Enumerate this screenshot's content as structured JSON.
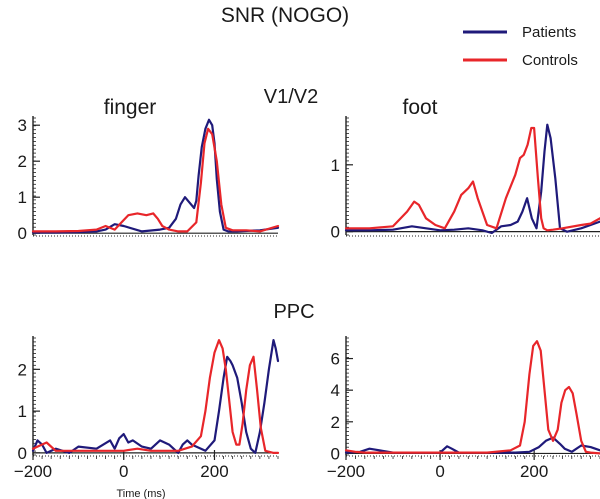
{
  "figure": {
    "title": "SNR (NOGO)",
    "row_titles": [
      "V1/V2",
      "PPC"
    ],
    "xlabel": "Time (ms)"
  },
  "legend": {
    "position": "top-right",
    "entries": [
      {
        "name": "Patients",
        "color": "#1f1a7a"
      },
      {
        "name": "Controls",
        "color": "#e8262a"
      }
    ]
  },
  "chart_data": [
    {
      "type": "line",
      "title": "finger",
      "region": "V1/V2",
      "xlim": [
        -200,
        340
      ],
      "ylim": [
        -0.05,
        3.2
      ],
      "yticks": [
        0,
        1,
        2,
        3
      ],
      "series": [
        {
          "name": "Patients",
          "x": [
            -210,
            -150,
            -100,
            -60,
            -40,
            -20,
            0,
            40,
            80,
            100,
            115,
            125,
            135,
            145,
            155,
            160,
            165,
            172,
            180,
            188,
            195,
            200,
            205,
            212,
            220,
            230,
            250,
            300,
            340
          ],
          "y": [
            0.02,
            0.02,
            0.03,
            0.05,
            0.1,
            0.25,
            0.2,
            0.05,
            0.1,
            0.15,
            0.4,
            0.8,
            1.0,
            0.85,
            0.7,
            0.9,
            1.6,
            2.4,
            2.9,
            3.15,
            3.0,
            2.5,
            1.5,
            0.6,
            0.1,
            0.05,
            0.05,
            0.08,
            0.15
          ]
        },
        {
          "name": "Controls",
          "x": [
            -210,
            -150,
            -100,
            -60,
            -40,
            -20,
            -5,
            10,
            30,
            50,
            65,
            75,
            85,
            100,
            120,
            140,
            160,
            170,
            178,
            186,
            195,
            205,
            215,
            225,
            240,
            270,
            300,
            340
          ],
          "y": [
            0.05,
            0.05,
            0.06,
            0.1,
            0.2,
            0.1,
            0.3,
            0.5,
            0.55,
            0.5,
            0.55,
            0.4,
            0.2,
            0.1,
            0.05,
            0.05,
            0.3,
            1.4,
            2.5,
            2.9,
            2.75,
            2.0,
            0.8,
            0.15,
            0.08,
            0.08,
            0.05,
            0.2
          ]
        }
      ]
    },
    {
      "type": "line",
      "title": "foot",
      "region": "V1/V2",
      "xlim": [
        -200,
        340
      ],
      "ylim": [
        -0.05,
        1.7
      ],
      "yticks": [
        0,
        1
      ],
      "series": [
        {
          "name": "Patients",
          "x": [
            -210,
            -150,
            -100,
            -60,
            -30,
            0,
            30,
            60,
            90,
            110,
            130,
            150,
            165,
            175,
            185,
            195,
            205,
            215,
            222,
            228,
            235,
            245,
            255,
            270,
            300,
            320,
            340
          ],
          "y": [
            0.02,
            0.02,
            0.03,
            0.08,
            0.05,
            0.02,
            0.03,
            0.05,
            0.02,
            -0.02,
            0.08,
            0.1,
            0.15,
            0.3,
            0.5,
            0.2,
            0.05,
            0.6,
            1.2,
            1.6,
            1.4,
            0.8,
            0.05,
            0.0,
            0.05,
            0.1,
            0.15
          ]
        },
        {
          "name": "Controls",
          "x": [
            -210,
            -150,
            -100,
            -70,
            -55,
            -45,
            -30,
            -10,
            10,
            30,
            45,
            60,
            70,
            80,
            100,
            120,
            140,
            160,
            170,
            178,
            186,
            194,
            200,
            208,
            215,
            220,
            228,
            240,
            260,
            300,
            320,
            340
          ],
          "y": [
            0.05,
            0.05,
            0.08,
            0.3,
            0.45,
            0.4,
            0.2,
            0.1,
            0.05,
            0.3,
            0.55,
            0.65,
            0.75,
            0.5,
            0.1,
            0.05,
            0.5,
            0.85,
            1.1,
            1.15,
            1.3,
            1.55,
            1.55,
            0.8,
            0.2,
            0.05,
            0.02,
            0.03,
            0.05,
            0.1,
            0.12,
            0.2
          ]
        }
      ]
    },
    {
      "type": "line",
      "title": "",
      "region": "PPC",
      "xlim": [
        -200,
        340
      ],
      "ylim": [
        -0.05,
        2.75
      ],
      "yticks": [
        0,
        1,
        2
      ],
      "series": [
        {
          "name": "Patients",
          "x": [
            -210,
            -190,
            -180,
            -170,
            -150,
            -120,
            -100,
            -60,
            -30,
            -20,
            -10,
            0,
            10,
            20,
            40,
            60,
            80,
            100,
            120,
            130,
            140,
            150,
            160,
            180,
            200,
            210,
            220,
            228,
            235,
            240,
            250,
            260,
            270,
            280,
            290,
            300,
            310,
            320,
            330,
            335,
            340
          ],
          "y": [
            0.05,
            0.3,
            0.2,
            0.0,
            0.1,
            0.0,
            0.15,
            0.1,
            0.3,
            0.1,
            0.35,
            0.45,
            0.25,
            0.3,
            0.15,
            0.1,
            0.3,
            0.2,
            0.0,
            0.2,
            0.3,
            0.2,
            0.15,
            0.05,
            0.3,
            1.0,
            1.8,
            2.3,
            2.2,
            2.1,
            1.8,
            1.2,
            0.5,
            0.1,
            0.0,
            0.5,
            1.2,
            2.0,
            2.7,
            2.5,
            2.2
          ]
        },
        {
          "name": "Controls",
          "x": [
            -210,
            -190,
            -170,
            -150,
            -120,
            -90,
            -60,
            -30,
            0,
            30,
            60,
            90,
            120,
            150,
            170,
            180,
            190,
            200,
            210,
            218,
            225,
            232,
            240,
            248,
            255,
            262,
            270,
            278,
            286,
            294,
            302,
            312,
            330,
            340
          ],
          "y": [
            0.1,
            0.15,
            0.25,
            0.05,
            0.05,
            0.05,
            0.05,
            0.05,
            0.05,
            0.1,
            0.05,
            0.05,
            0.05,
            0.15,
            0.4,
            1.0,
            1.8,
            2.4,
            2.7,
            2.5,
            2.0,
            1.3,
            0.5,
            0.2,
            0.2,
            0.7,
            1.5,
            2.1,
            2.3,
            1.5,
            0.6,
            0.05,
            0.0,
            0.0
          ]
        }
      ]
    },
    {
      "type": "line",
      "title": "",
      "region": "PPC",
      "xlim": [
        -200,
        340
      ],
      "ylim": [
        -0.1,
        7.3
      ],
      "yticks": [
        0,
        2,
        4,
        6
      ],
      "series": [
        {
          "name": "Patients",
          "x": [
            -210,
            -170,
            -150,
            -100,
            -50,
            0,
            15,
            25,
            40,
            80,
            120,
            160,
            190,
            210,
            225,
            240,
            255,
            265,
            280,
            300,
            320,
            340
          ],
          "y": [
            0.05,
            0.1,
            0.3,
            0.05,
            0.05,
            0.05,
            0.45,
            0.3,
            0.05,
            0.05,
            0.05,
            0.05,
            0.1,
            0.4,
            0.8,
            1.0,
            0.6,
            0.3,
            0.1,
            0.5,
            0.4,
            0.2
          ]
        },
        {
          "name": "Controls",
          "x": [
            -210,
            -180,
            -160,
            -100,
            -50,
            0,
            50,
            100,
            150,
            170,
            180,
            190,
            198,
            206,
            214,
            222,
            230,
            240,
            250,
            258,
            266,
            274,
            282,
            290,
            300,
            310,
            320,
            340
          ],
          "y": [
            0.2,
            0.1,
            0.05,
            0.05,
            0.05,
            0.05,
            0.05,
            0.05,
            0.2,
            0.5,
            2.0,
            5.0,
            6.8,
            7.1,
            6.5,
            4.0,
            1.5,
            0.8,
            1.5,
            3.2,
            4.0,
            4.2,
            3.8,
            2.5,
            0.8,
            0.1,
            0.05,
            0.0
          ]
        }
      ]
    }
  ]
}
